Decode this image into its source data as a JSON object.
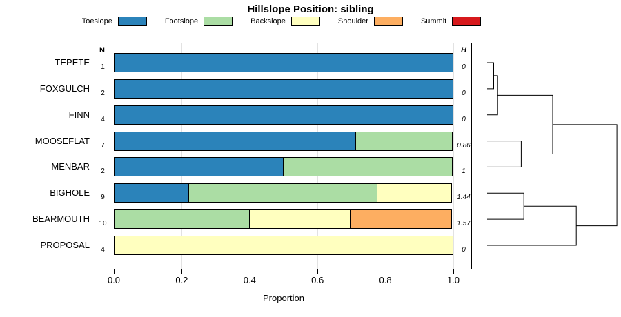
{
  "chart_data": {
    "type": "bar",
    "variant": "horizontal-stacked-proportion",
    "title": "Hillslope Position: sibling",
    "xlabel": "Proportion",
    "xlim": [
      0,
      1
    ],
    "x_ticks": [
      0,
      0.2,
      0.4,
      0.6,
      0.8,
      1.0
    ],
    "x_tick_labels": [
      "0.0",
      "0.2",
      "0.4",
      "0.6",
      "0.8",
      "1.0"
    ],
    "grid": true,
    "legend_position": "top",
    "col_header_left": "N",
    "col_header_right": "H",
    "categories": [
      "TEPETE",
      "FOXGULCH",
      "FINN",
      "MOOSEFLAT",
      "MENBAR",
      "BIGHOLE",
      "BEARMOUTH",
      "PROPOSAL"
    ],
    "n_values": [
      1,
      2,
      4,
      7,
      2,
      9,
      10,
      4
    ],
    "h_values": [
      "0",
      "0",
      "0",
      "0.86",
      "1",
      "1.44",
      "1.57",
      "0"
    ],
    "series": [
      {
        "name": "Toeslope",
        "color": "#2B83BA",
        "values": [
          1,
          1,
          1,
          0.7143,
          0.5,
          0.2222,
          0,
          0
        ]
      },
      {
        "name": "Footslope",
        "color": "#ABDDA4",
        "values": [
          0,
          0,
          0,
          0.2857,
          0.5,
          0.5556,
          0.4,
          0
        ]
      },
      {
        "name": "Backslope",
        "color": "#FFFFBF",
        "values": [
          0,
          0,
          0,
          0,
          0,
          0.2222,
          0.3,
          1
        ]
      },
      {
        "name": "Shoulder",
        "color": "#FDAE61",
        "values": [
          0,
          0,
          0,
          0,
          0,
          0,
          0.3,
          0
        ]
      },
      {
        "name": "Summit",
        "color": "#D7191C",
        "values": [
          0,
          0,
          0,
          0,
          0,
          0,
          0,
          0
        ]
      }
    ]
  },
  "legend": {
    "items": [
      {
        "label": "Toeslope",
        "color": "#2B83BA"
      },
      {
        "label": "Footslope",
        "color": "#ABDDA4"
      },
      {
        "label": "Backslope",
        "color": "#FFFFBF"
      },
      {
        "label": "Shoulder",
        "color": "#FDAE61"
      },
      {
        "label": "Summit",
        "color": "#D7191C"
      }
    ]
  },
  "dendrogram": {
    "height_units": "normalized-0-1",
    "leaf_order": [
      "TEPETE",
      "FOXGULCH",
      "FINN",
      "MOOSEFLAT",
      "MENBAR",
      "BIGHOLE",
      "BEARMOUTH",
      "PROPOSAL"
    ],
    "merges": [
      {
        "id": "m1",
        "a": "TEPETE",
        "b": "FOXGULCH",
        "height": 0.05
      },
      {
        "id": "m2",
        "a": "m1",
        "b": "FINN",
        "height": 0.08
      },
      {
        "id": "m3",
        "a": "MOOSEFLAT",
        "b": "MENBAR",
        "height": 0.26
      },
      {
        "id": "m4",
        "a": "m2",
        "b": "m3",
        "height": 0.5
      },
      {
        "id": "m5",
        "a": "BIGHOLE",
        "b": "BEARMOUTH",
        "height": 0.28
      },
      {
        "id": "m6",
        "a": "m5",
        "b": "PROPOSAL",
        "height": 0.68
      },
      {
        "id": "m7",
        "a": "m4",
        "b": "m6",
        "height": 0.99
      }
    ]
  }
}
